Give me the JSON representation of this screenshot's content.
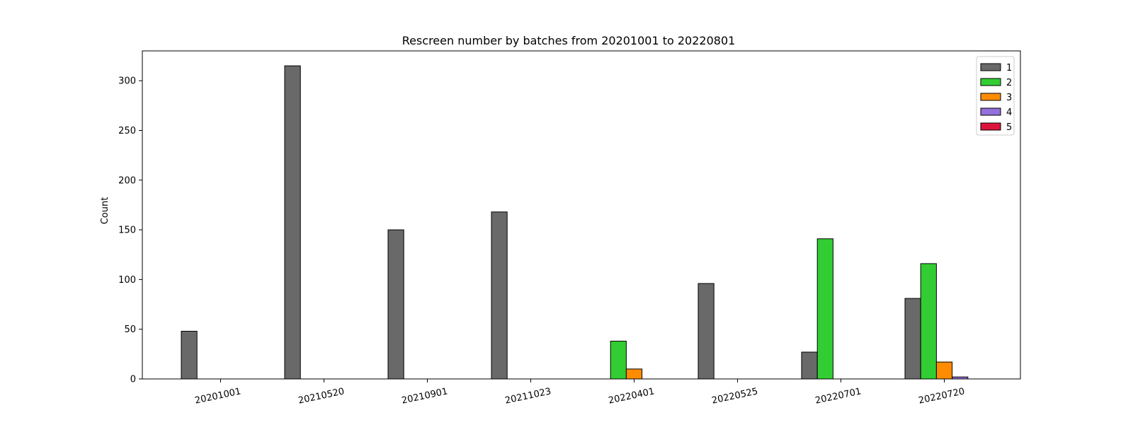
{
  "chart_data": {
    "type": "bar",
    "title": "Rescreen number  by batches from 20201001 to 20220801",
    "xlabel": "",
    "ylabel": "Count",
    "ylim": [
      0,
      330
    ],
    "yticks": [
      0,
      50,
      100,
      150,
      200,
      250,
      300
    ],
    "categories": [
      "20201001",
      "20210520",
      "20210901",
      "20211023",
      "20220401",
      "20220525",
      "20220701",
      "20220720"
    ],
    "series": [
      {
        "name": "1",
        "color": "#696969",
        "values": [
          48,
          315,
          150,
          168,
          0,
          96,
          27,
          81
        ]
      },
      {
        "name": "2",
        "color": "#32cd32",
        "values": [
          0,
          0,
          0,
          0,
          38,
          0,
          141,
          116
        ]
      },
      {
        "name": "3",
        "color": "#ff8c00",
        "values": [
          0,
          0,
          0,
          0,
          10,
          0,
          0,
          17
        ]
      },
      {
        "name": "4",
        "color": "#9370db",
        "values": [
          0,
          0,
          0,
          0,
          0,
          0,
          0,
          2
        ]
      },
      {
        "name": "5",
        "color": "#dc143c",
        "values": [
          0,
          0,
          0,
          0,
          0,
          0,
          0,
          0
        ]
      }
    ],
    "legend_position": "top-right",
    "grid": false
  }
}
